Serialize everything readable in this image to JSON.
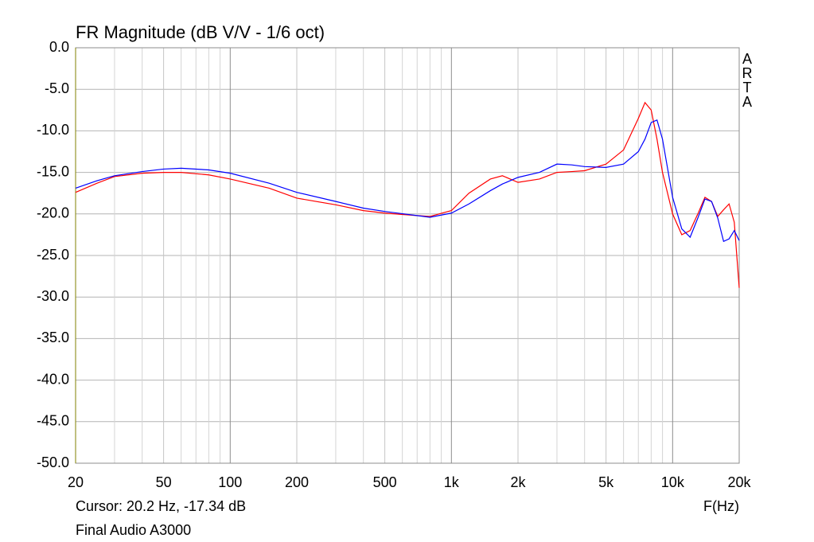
{
  "chart_data": {
    "type": "line",
    "title": "FR Magnitude (dB V/V - 1/6 oct)",
    "watermark": "ARTA",
    "xlabel": "F(Hz)",
    "cursor": "Cursor: 20.2 Hz, -17.34 dB",
    "caption": "Final Audio A3000",
    "xscale": "log",
    "grid": true,
    "xlim": [
      20,
      20000
    ],
    "ylim": [
      -50,
      0
    ],
    "xticks": [
      20,
      50,
      100,
      200,
      500,
      {
        "value": 1000,
        "label": "1k"
      },
      {
        "value": 2000,
        "label": "2k"
      },
      {
        "value": 5000,
        "label": "5k"
      },
      {
        "value": 10000,
        "label": "10k"
      },
      {
        "value": 20000,
        "label": "20k"
      }
    ],
    "xminorticks": [
      30,
      40,
      60,
      70,
      80,
      90,
      300,
      400,
      600,
      700,
      800,
      900,
      3000,
      4000,
      6000,
      7000,
      8000,
      9000
    ],
    "yticks": [
      {
        "value": 0,
        "label": "0.0"
      },
      {
        "value": -5,
        "label": "-5.0"
      },
      {
        "value": -10,
        "label": "-10.0"
      },
      {
        "value": -15,
        "label": "-15.0"
      },
      {
        "value": -20,
        "label": "-20.0"
      },
      {
        "value": -25,
        "label": "-25.0"
      },
      {
        "value": -30,
        "label": "-30.0"
      },
      {
        "value": -35,
        "label": "-35.0"
      },
      {
        "value": -40,
        "label": "-40.0"
      },
      {
        "value": -45,
        "label": "-45.0"
      },
      {
        "value": -50,
        "label": "-50.0"
      }
    ],
    "x": [
      20,
      25,
      30,
      40,
      50,
      60,
      80,
      100,
      150,
      200,
      300,
      400,
      500,
      700,
      800,
      1000,
      1200,
      1500,
      1700,
      2000,
      2500,
      3000,
      3500,
      4000,
      5000,
      6000,
      7000,
      7500,
      8000,
      8500,
      9000,
      10000,
      11000,
      12000,
      13000,
      14000,
      15000,
      16000,
      17000,
      18000,
      19000,
      20000
    ],
    "series": [
      {
        "color": "#ff0000",
        "values": [
          -17.4,
          -16.3,
          -15.5,
          -15.1,
          -15.0,
          -15.0,
          -15.3,
          -15.8,
          -16.9,
          -18.1,
          -18.9,
          -19.6,
          -19.9,
          -20.2,
          -20.3,
          -19.6,
          -17.5,
          -15.8,
          -15.4,
          -16.2,
          -15.8,
          -15.0,
          -14.9,
          -14.8,
          -14.0,
          -12.3,
          -8.5,
          -6.6,
          -7.5,
          -11.0,
          -15.0,
          -20.0,
          -22.5,
          -22.0,
          -20.0,
          -18.0,
          -18.5,
          -20.3,
          -19.5,
          -18.8,
          -21.0,
          -28.9
        ]
      },
      {
        "color": "#0000ff",
        "values": [
          -16.9,
          -16.0,
          -15.4,
          -14.9,
          -14.6,
          -14.5,
          -14.7,
          -15.1,
          -16.3,
          -17.4,
          -18.5,
          -19.3,
          -19.7,
          -20.2,
          -20.4,
          -19.9,
          -18.8,
          -17.2,
          -16.4,
          -15.6,
          -15.0,
          -14.0,
          -14.1,
          -14.3,
          -14.4,
          -14.0,
          -12.5,
          -11.0,
          -9.0,
          -8.7,
          -11.0,
          -18.0,
          -21.8,
          -22.8,
          -20.5,
          -18.2,
          -18.5,
          -20.5,
          -23.3,
          -23.0,
          -22.0,
          -23.2
        ]
      }
    ]
  }
}
